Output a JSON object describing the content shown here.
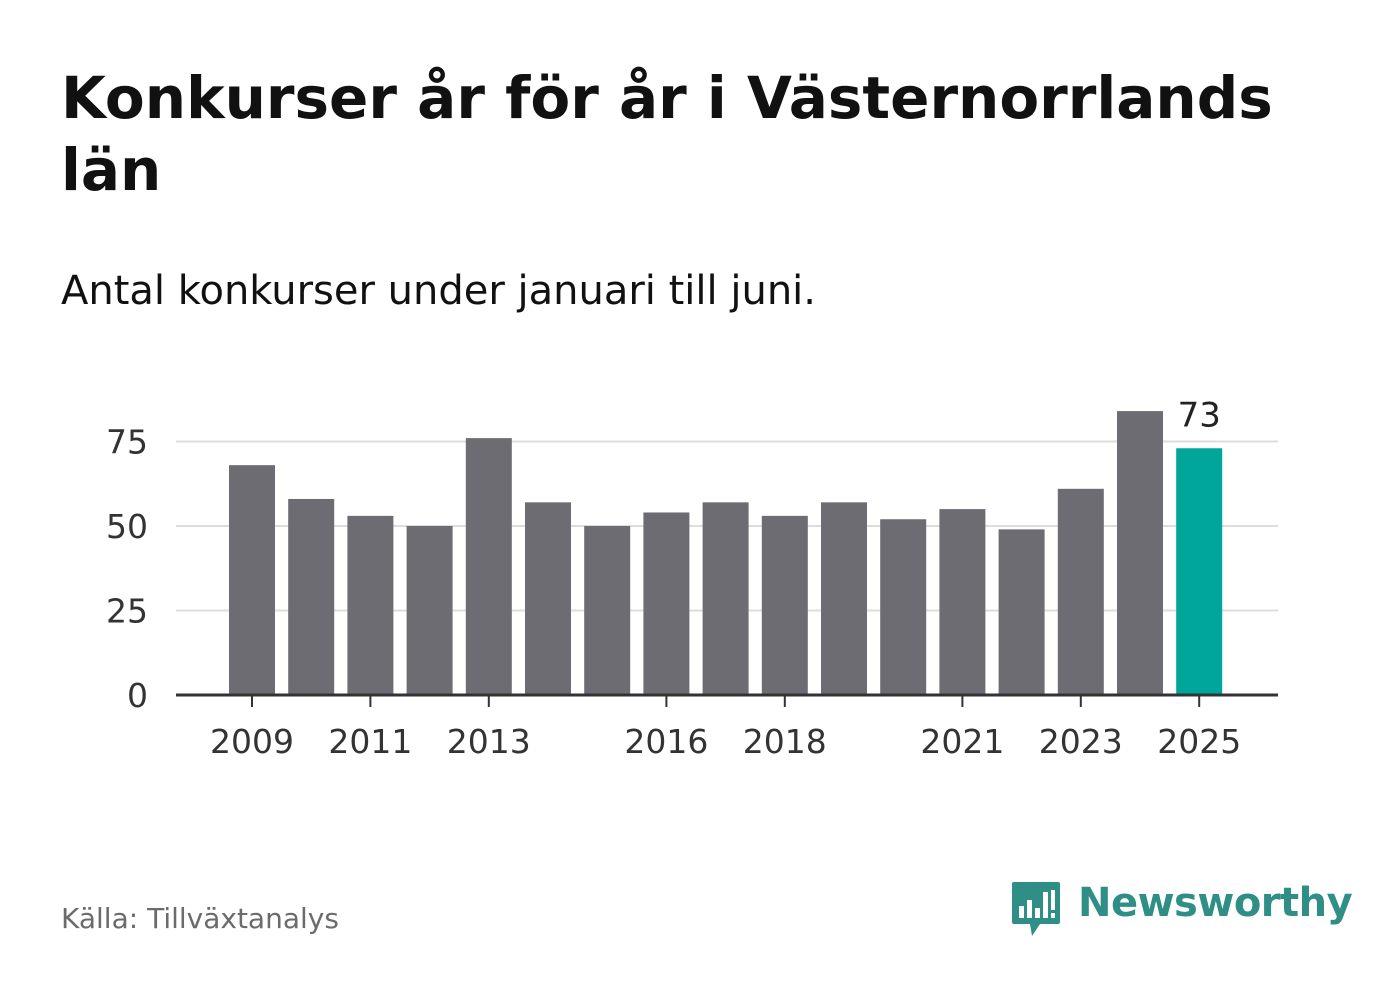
{
  "header": {
    "title": "Konkurser år för år i Västernorrlands län",
    "subtitle": "Antal konkurser under januari till juni."
  },
  "footer": {
    "source": "Källa: Tillväxtanalys",
    "brand": "Newsworthy",
    "brand_icon": "bar-chart-speech-bubble-icon"
  },
  "colors": {
    "bar": "#6d6c72",
    "highlight": "#00a699",
    "grid": "#dddddd",
    "axis": "#333333",
    "brand": "#2f8f86"
  },
  "chart_data": {
    "type": "bar",
    "title": "Konkurser år för år i Västernorrlands län",
    "subtitle": "Antal konkurser under januari till juni.",
    "categories": [
      "2009",
      "2010",
      "2011",
      "2012",
      "2013",
      "2014",
      "2015",
      "2016",
      "2017",
      "2018",
      "2019",
      "2020",
      "2021",
      "2022",
      "2023",
      "2024",
      "2025"
    ],
    "values": [
      68,
      58,
      53,
      50,
      76,
      57,
      50,
      54,
      57,
      53,
      57,
      52,
      55,
      49,
      61,
      84,
      73
    ],
    "x_tick_labels": [
      "2009",
      "2011",
      "2013",
      "2016",
      "2018",
      "2021",
      "2023",
      "2025"
    ],
    "y_ticks": [
      0,
      25,
      50,
      75
    ],
    "ylim": [
      0,
      85
    ],
    "grid": true,
    "highlight_category": "2025",
    "highlight_label": "73",
    "xlabel": "",
    "ylabel": ""
  }
}
